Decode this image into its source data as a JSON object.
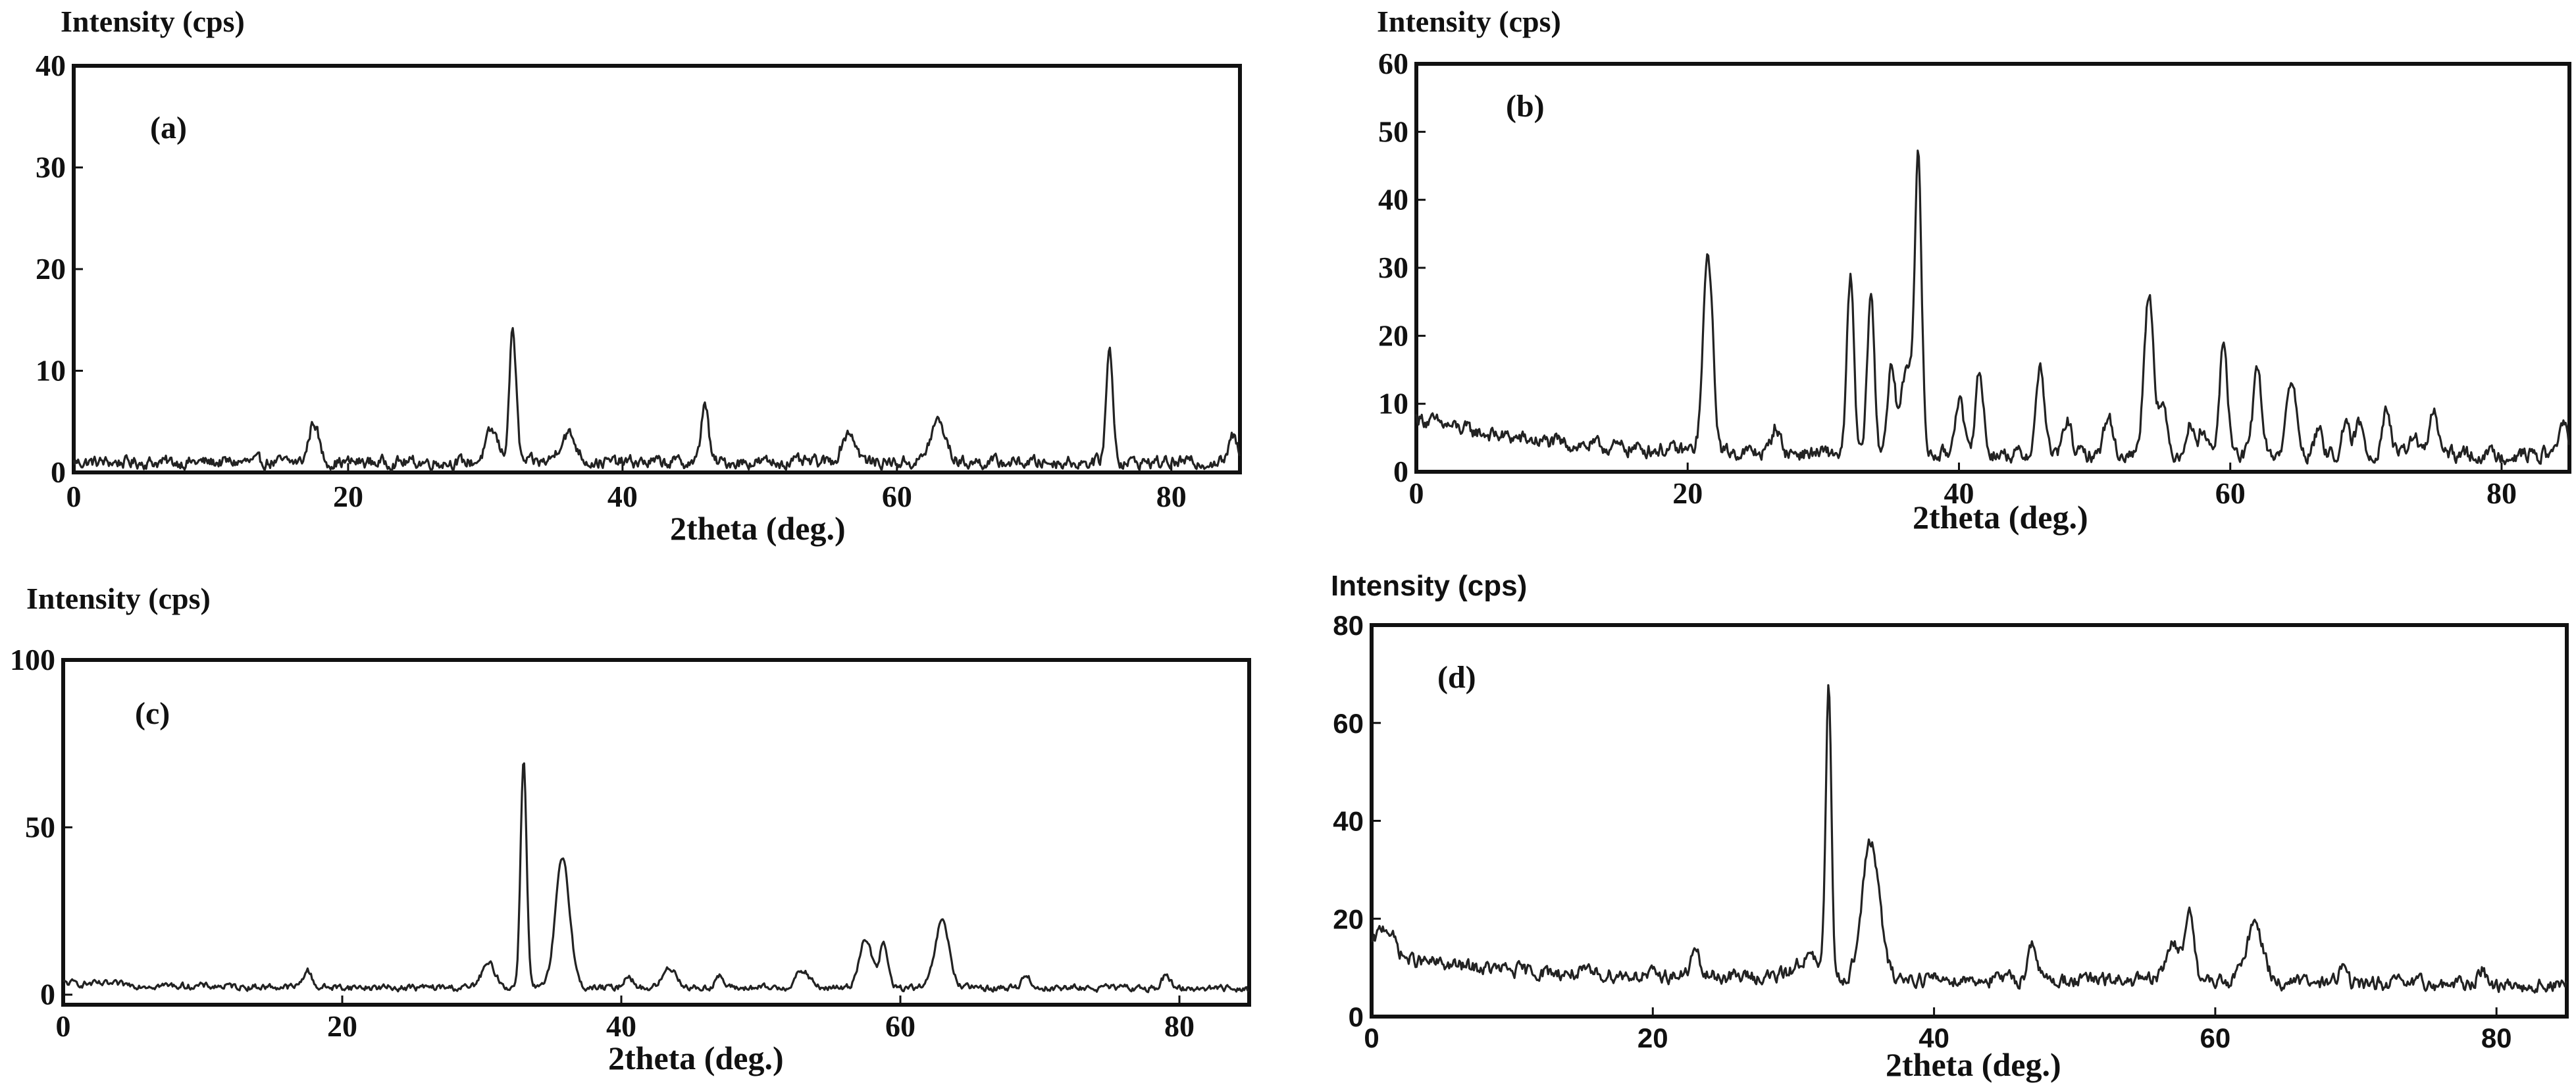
{
  "chart_data": [
    {
      "id": "a",
      "type": "line",
      "panel_label": "(a)",
      "ylabel": "Intensity (cps)",
      "xlabel": "2theta (deg.)",
      "xlim": [
        0,
        85
      ],
      "ylim": [
        0,
        40
      ],
      "xticks": [
        "0",
        "20",
        "40",
        "60",
        "80"
      ],
      "yticks": [
        "0",
        "10",
        "20",
        "30",
        "40"
      ],
      "baseline": 1.0,
      "noise": 0.5,
      "peaks": [
        {
          "x": 17.5,
          "y": 4.0,
          "w": 0.35
        },
        {
          "x": 30.5,
          "y": 3.0,
          "w": 0.45
        },
        {
          "x": 32.0,
          "y": 13.0,
          "w": 0.25
        },
        {
          "x": 36.0,
          "y": 2.8,
          "w": 0.6
        },
        {
          "x": 46.0,
          "y": 6.0,
          "w": 0.25
        },
        {
          "x": 56.5,
          "y": 3.0,
          "w": 0.5
        },
        {
          "x": 63.0,
          "y": 4.0,
          "w": 0.55
        },
        {
          "x": 75.5,
          "y": 11.0,
          "w": 0.25
        },
        {
          "x": 84.5,
          "y": 2.5,
          "w": 0.3
        }
      ]
    },
    {
      "id": "b",
      "type": "line",
      "panel_label": "(b)",
      "ylabel": "Intensity (cps)",
      "xlabel": "2theta (deg.)",
      "xlim": [
        0,
        85
      ],
      "ylim": [
        0,
        60
      ],
      "xticks": [
        "0",
        "20",
        "40",
        "60",
        "80"
      ],
      "yticks": [
        "0",
        "10",
        "20",
        "30",
        "40",
        "50",
        "60"
      ],
      "baseline": 2.5,
      "noise": 0.9,
      "peaks": [
        {
          "x": 21.5,
          "y": 29.0,
          "w": 0.35
        },
        {
          "x": 26.5,
          "y": 4.0,
          "w": 0.3
        },
        {
          "x": 32.0,
          "y": 26.0,
          "w": 0.25
        },
        {
          "x": 33.5,
          "y": 24.0,
          "w": 0.25
        },
        {
          "x": 35.0,
          "y": 12.0,
          "w": 0.3
        },
        {
          "x": 36.2,
          "y": 13.0,
          "w": 0.45
        },
        {
          "x": 37.0,
          "y": 41.0,
          "w": 0.25
        },
        {
          "x": 40.0,
          "y": 8.5,
          "w": 0.3
        },
        {
          "x": 41.5,
          "y": 12.0,
          "w": 0.3
        },
        {
          "x": 46.0,
          "y": 13.0,
          "w": 0.3
        },
        {
          "x": 48.0,
          "y": 5.0,
          "w": 0.3
        },
        {
          "x": 51.0,
          "y": 6.0,
          "w": 0.3
        },
        {
          "x": 54.0,
          "y": 24.0,
          "w": 0.35
        },
        {
          "x": 55.0,
          "y": 7.0,
          "w": 0.3
        },
        {
          "x": 57.0,
          "y": 4.5,
          "w": 0.3
        },
        {
          "x": 58.0,
          "y": 4.0,
          "w": 0.3
        },
        {
          "x": 59.5,
          "y": 16.0,
          "w": 0.3
        },
        {
          "x": 62.0,
          "y": 13.0,
          "w": 0.3
        },
        {
          "x": 64.5,
          "y": 11.0,
          "w": 0.35
        },
        {
          "x": 66.5,
          "y": 3.5,
          "w": 0.3
        },
        {
          "x": 68.5,
          "y": 4.0,
          "w": 0.3
        },
        {
          "x": 69.5,
          "y": 4.5,
          "w": 0.3
        },
        {
          "x": 71.5,
          "y": 7.0,
          "w": 0.3
        },
        {
          "x": 73.5,
          "y": 3.0,
          "w": 0.3
        },
        {
          "x": 75.0,
          "y": 6.5,
          "w": 0.3
        },
        {
          "x": 84.5,
          "y": 5.0,
          "w": 0.3
        }
      ]
    },
    {
      "id": "c",
      "type": "line",
      "panel_label": "(c)",
      "ylabel": "Intensity (cps)",
      "xlabel": "2theta (deg.)",
      "xlim": [
        0,
        85
      ],
      "ylim": [
        -3,
        100
      ],
      "xticks": [
        "0",
        "20",
        "40",
        "60",
        "80"
      ],
      "yticks": [
        "0",
        "50",
        "100"
      ],
      "baseline": 2.0,
      "noise": 0.8,
      "peaks": [
        {
          "x": 17.5,
          "y": 5.0,
          "w": 0.3
        },
        {
          "x": 30.5,
          "y": 7.0,
          "w": 0.5
        },
        {
          "x": 33.0,
          "y": 68.0,
          "w": 0.22
        },
        {
          "x": 35.8,
          "y": 39.0,
          "w": 0.5
        },
        {
          "x": 40.5,
          "y": 4.0,
          "w": 0.3
        },
        {
          "x": 43.5,
          "y": 6.0,
          "w": 0.5
        },
        {
          "x": 47.0,
          "y": 3.5,
          "w": 0.3
        },
        {
          "x": 53.0,
          "y": 5.0,
          "w": 0.5
        },
        {
          "x": 57.5,
          "y": 15.0,
          "w": 0.45
        },
        {
          "x": 58.8,
          "y": 13.0,
          "w": 0.3
        },
        {
          "x": 63.0,
          "y": 20.0,
          "w": 0.5
        },
        {
          "x": 69.0,
          "y": 4.0,
          "w": 0.3
        },
        {
          "x": 79.0,
          "y": 3.5,
          "w": 0.3
        }
      ]
    },
    {
      "id": "d",
      "type": "line",
      "panel_label": "(d)",
      "ylabel": "Intensity (cps)",
      "xlabel": "2theta (deg.)",
      "xlim": [
        0,
        85
      ],
      "ylim": [
        0,
        80
      ],
      "xticks": [
        "0",
        "20",
        "40",
        "60",
        "80"
      ],
      "yticks": [
        "0",
        "20",
        "40",
        "60",
        "80"
      ],
      "baseline": 8.0,
      "noise": 1.2,
      "peaks": [
        {
          "x": 1.0,
          "y": 6.0,
          "w": 0.6
        },
        {
          "x": 23.0,
          "y": 5.0,
          "w": 0.3
        },
        {
          "x": 31.0,
          "y": 4.0,
          "w": 0.8
        },
        {
          "x": 32.5,
          "y": 58.0,
          "w": 0.2
        },
        {
          "x": 35.5,
          "y": 28.0,
          "w": 0.6
        },
        {
          "x": 47.0,
          "y": 8.0,
          "w": 0.3
        },
        {
          "x": 57.0,
          "y": 8.0,
          "w": 0.5
        },
        {
          "x": 58.2,
          "y": 15.0,
          "w": 0.3
        },
        {
          "x": 62.8,
          "y": 12.0,
          "w": 0.6
        },
        {
          "x": 69.0,
          "y": 3.0,
          "w": 0.3
        },
        {
          "x": 79.0,
          "y": 3.0,
          "w": 0.3
        }
      ]
    }
  ]
}
